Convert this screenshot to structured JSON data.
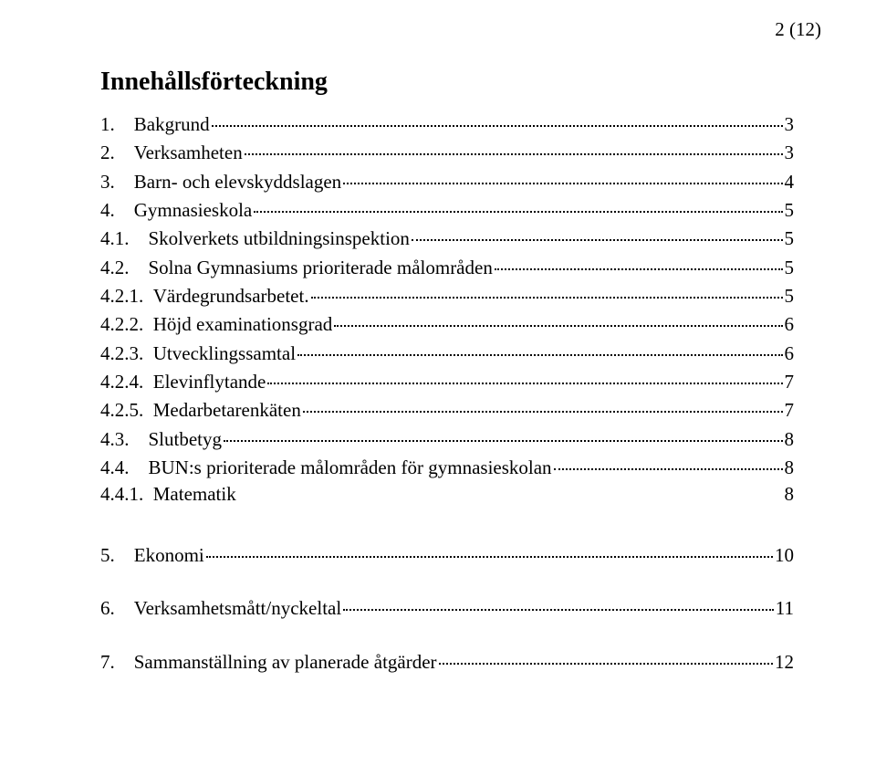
{
  "page_number": "2 (12)",
  "heading": "Innehållsförteckning",
  "colors": {
    "background": "#ffffff",
    "text": "#000000",
    "leader": "#000000"
  },
  "typography": {
    "body_fontsize_pt": 16,
    "heading_fontsize_pt": 21,
    "font_family": "Times New Roman"
  },
  "entries": [
    {
      "id": "e1",
      "level": 1,
      "num": "1.",
      "label": "Bakgrund",
      "page": "3",
      "dots": true
    },
    {
      "id": "e2",
      "level": 1,
      "num": "2.",
      "label": "Verksamheten",
      "page": "3",
      "dots": true
    },
    {
      "id": "e3",
      "level": 1,
      "num": "3.",
      "label": "Barn- och elevskyddslagen",
      "page": "4",
      "dots": true
    },
    {
      "id": "e4",
      "level": 1,
      "num": "4.",
      "label": "Gymnasieskola",
      "page": "5",
      "dots": true
    },
    {
      "id": "e5",
      "level": 2,
      "num": "4.1.",
      "label": "Skolverkets utbildningsinspektion",
      "page": "5",
      "dots": true
    },
    {
      "id": "e6",
      "level": 2,
      "num": "4.2.",
      "label": "Solna Gymnasiums prioriterade målområden",
      "page": "5",
      "dots": true
    },
    {
      "id": "e7",
      "level": 2,
      "num": "4.2.1.",
      "label": "Värdegrundsarbetet.",
      "page": "5",
      "dots": true
    },
    {
      "id": "e8",
      "level": 2,
      "num": "4.2.2.",
      "label": "Höjd examinationsgrad",
      "page": "6",
      "dots": true
    },
    {
      "id": "e9",
      "level": 2,
      "num": "4.2.3.",
      "label": "Utvecklingssamtal",
      "page": "6",
      "dots": true
    },
    {
      "id": "e10",
      "level": 2,
      "num": "4.2.4.",
      "label": "Elevinflytande",
      "page": "7",
      "dots": true
    },
    {
      "id": "e11",
      "level": 2,
      "num": "4.2.5.",
      "label": "Medarbetarenkäten",
      "page": "7",
      "dots": true
    },
    {
      "id": "e12",
      "level": 2,
      "num": "4.3.",
      "label": "Slutbetyg",
      "page": "8",
      "dots": true
    },
    {
      "id": "e13",
      "level": 2,
      "num": "4.4.",
      "label": "BUN:s prioriterade målområden för gymnasieskolan",
      "page": "8",
      "dots": true
    },
    {
      "id": "e14",
      "level": 2,
      "num": "4.4.1.",
      "label": "Matematik",
      "page": "8",
      "dots": false
    },
    {
      "id": "e15",
      "level": 1,
      "num": "5.",
      "label": "Ekonomi",
      "page": "10",
      "dots": true
    },
    {
      "id": "e16",
      "level": 1,
      "num": "6.",
      "label": "Verksamhetsmått/nyckeltal",
      "page": "11",
      "dots": true
    },
    {
      "id": "e17",
      "level": 1,
      "num": "7.",
      "label": "Sammanställning av planerade åtgärder",
      "page": "12",
      "dots": true
    }
  ]
}
